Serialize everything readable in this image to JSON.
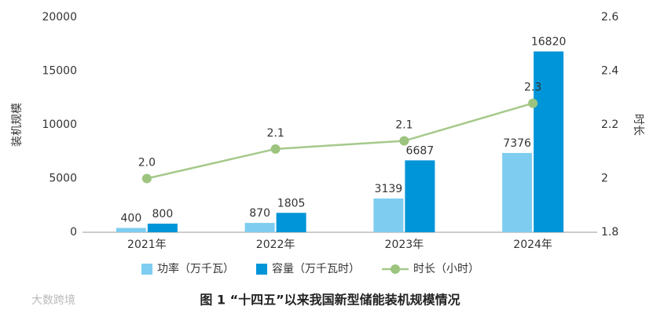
{
  "chart_data": {
    "type": "bar",
    "caption": "图 1 “十四五”以来我国新型储能装机规模情况",
    "y_label": "装机规模",
    "y2_label": "时长",
    "categories": [
      "2021年",
      "2022年",
      "2023年",
      "2024年"
    ],
    "series": [
      {
        "name": "功率（万千瓦）",
        "color": "#7ecdf1",
        "values": [
          400,
          870,
          3139,
          7376
        ]
      },
      {
        "name": "容量（万千瓦时）",
        "color": "#0094d8",
        "values": [
          800,
          1805,
          6687,
          16820
        ]
      },
      {
        "name": "时长（小时）",
        "type": "line",
        "axis": "y2",
        "color": "#a5c98a",
        "values": [
          2.0,
          2.11,
          2.14,
          2.28
        ],
        "value_labels": [
          "2.0",
          "2.1",
          "2.1",
          "2.3"
        ]
      }
    ],
    "ylim": [
      0,
      20000
    ],
    "yticks": [
      0,
      5000,
      10000,
      15000,
      20000
    ],
    "y2lim": [
      1.8,
      2.6
    ],
    "y2ticks": [
      1.8,
      2,
      2.2,
      2.4,
      2.6
    ]
  },
  "watermark": "大数跨境"
}
